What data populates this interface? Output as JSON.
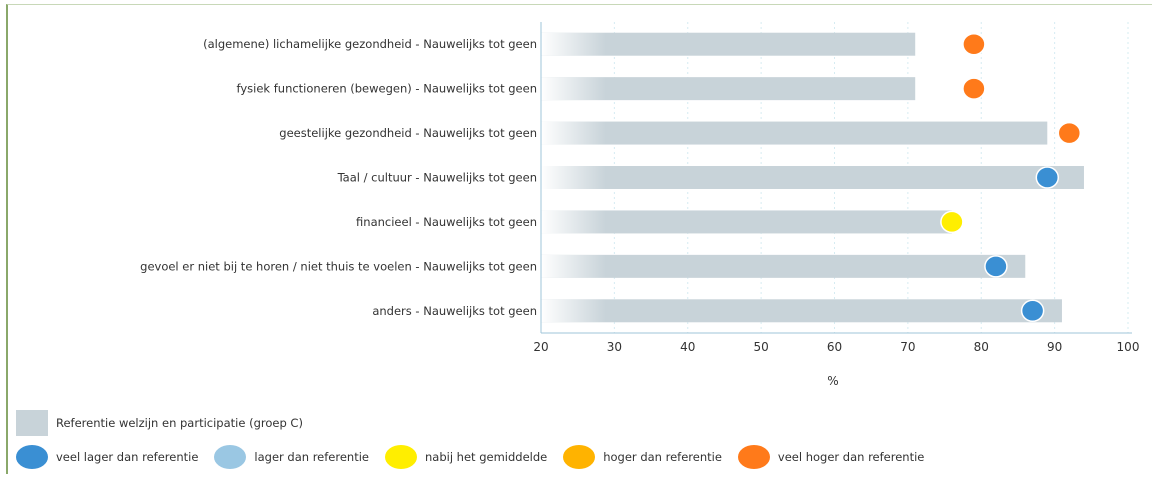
{
  "chart_data": {
    "type": "bar",
    "xlim": [
      20,
      100
    ],
    "ticks": [
      "20",
      "30",
      "40",
      "50",
      "60",
      "70",
      "80",
      "90",
      "100"
    ],
    "xlabel": "%",
    "categories": [
      "(algemene) lichamelijke gezondheid - Nauwelijks tot geen",
      "fysiek functioneren (bewegen) - Nauwelijks tot geen",
      "geestelijke gezondheid - Nauwelijks tot geen",
      "Taal / cultuur - Nauwelijks tot geen",
      "financieel - Nauwelijks tot geen",
      "gevoel er niet bij te horen / niet thuis te voelen - Nauwelijks tot geen",
      "anders - Nauwelijks tot geen"
    ],
    "reference_values": [
      71,
      71,
      89,
      94,
      76,
      86,
      91
    ],
    "markers": [
      {
        "value": 79,
        "class": "veel_hoger"
      },
      {
        "value": 79,
        "class": "veel_hoger"
      },
      {
        "value": 92,
        "class": "veel_hoger"
      },
      {
        "value": 89,
        "class": "veel_lager"
      },
      {
        "value": 76,
        "class": "nabij"
      },
      {
        "value": 82,
        "class": "veel_lager"
      },
      {
        "value": 87,
        "class": "veel_lager"
      }
    ],
    "grid": true,
    "legend_position": "bottom"
  },
  "colors": {
    "reference_bar": "#c8d3d9",
    "veel_lager": "#3a8fd3",
    "lager": "#9ac7e3",
    "nabij": "#ffee00",
    "hoger": "#ffb300",
    "veel_hoger": "#ff7a1a"
  },
  "legend": {
    "reference_label": "Referentie welzijn en participatie (groep C)",
    "items": [
      {
        "key": "veel_lager",
        "label": "veel lager dan referentie"
      },
      {
        "key": "lager",
        "label": "lager dan referentie"
      },
      {
        "key": "nabij",
        "label": "nabij het gemiddelde"
      },
      {
        "key": "hoger",
        "label": "hoger dan referentie"
      },
      {
        "key": "veel_hoger",
        "label": "veel hoger dan referentie"
      }
    ]
  }
}
